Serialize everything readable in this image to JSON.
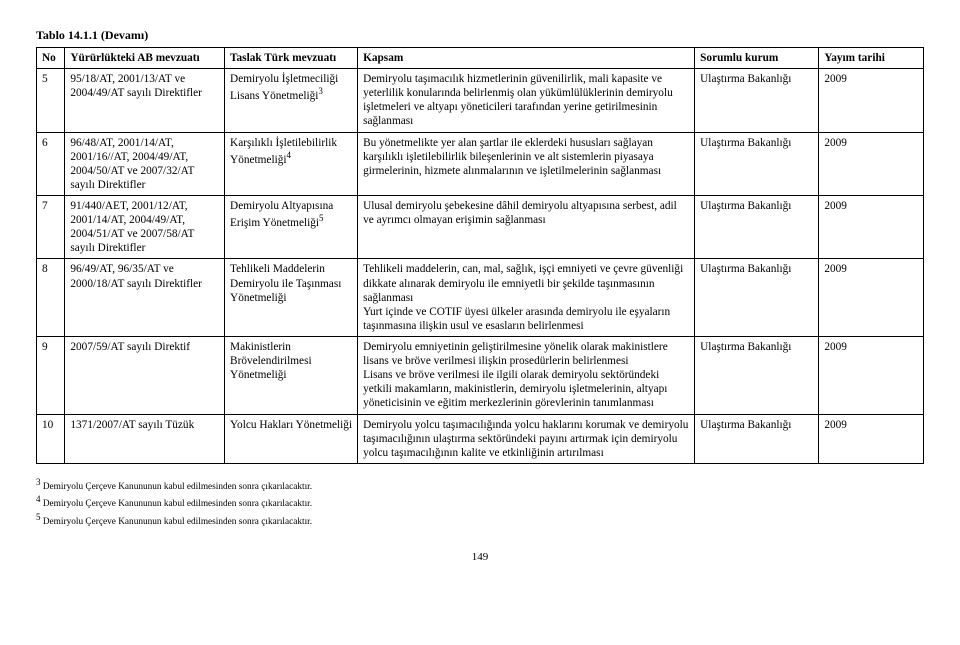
{
  "table_title": "Tablo 14.1.1 (Devamı)",
  "columns": [
    "No",
    "Yürürlükteki AB mevzuatı",
    "Taslak Türk mevzuatı",
    "Kapsam",
    "Sorumlu kurum",
    "Yayım tarihi"
  ],
  "rows": [
    {
      "no": "5",
      "eu": "95/18/AT, 2001/13/AT ve 2004/49/AT sayılı Direktifler",
      "tr_pre": "Demiryolu İşletmeciliği Lisans Yönetmeliği",
      "tr_sup": "3",
      "kapsam": "Demiryolu taşımacılık hizmetlerinin güvenilirlik, mali kapasite ve yeterlilik konularında belirlenmiş olan yükümlülüklerinin demiryolu işletmeleri ve altyapı yöneticileri tarafından yerine getirilmesinin sağlanması",
      "kurum": "Ulaştırma Bakanlığı",
      "tarih": "2009"
    },
    {
      "no": "6",
      "eu": "96/48/AT, 2001/14/AT, 2001/16//AT, 2004/49/AT, 2004/50/AT ve 2007/32/AT sayılı Direktifler",
      "tr_pre": "Karşılıklı İşletilebilirlik Yönetmeliği",
      "tr_sup": "4",
      "kapsam": "Bu yönetmelikte yer alan şartlar ile eklerdeki hususları sağlayan karşılıklı işletilebilirlik bileşenlerinin ve alt sistemlerin piyasaya girmelerinin, hizmete alınmalarının ve işletilmelerinin sağlanması",
      "kurum": "Ulaştırma Bakanlığı",
      "tarih": "2009"
    },
    {
      "no": "7",
      "eu": "91/440/AET, 2001/12/AT, 2001/14/AT, 2004/49/AT, 2004/51/AT ve 2007/58/AT sayılı Direktifler",
      "tr_pre": "Demiryolu Altyapısına Erişim Yönetmeliği",
      "tr_sup": "5",
      "kapsam": "Ulusal demiryolu şebekesine dâhil demiryolu altyapısına serbest, adil ve ayrımcı olmayan erişimin sağlanması",
      "kurum": "Ulaştırma Bakanlığı",
      "tarih": "2009"
    },
    {
      "no": "8",
      "eu": "96/49/AT, 96/35/AT ve 2000/18/AT sayılı Direktifler",
      "tr_pre": "Tehlikeli Maddelerin Demiryolu ile Taşınması Yönetmeliği",
      "tr_sup": "",
      "kapsam": "Tehlikeli maddelerin, can, mal, sağlık, işçi emniyeti ve çevre güvenliği dikkate alınarak demiryolu ile emniyetli bir şekilde taşınmasının sağlanması\nYurt içinde ve COTIF üyesi ülkeler arasında demiryolu ile eşyaların taşınmasına ilişkin usul ve esasların belirlenmesi",
      "kurum": "Ulaştırma Bakanlığı",
      "tarih": "2009"
    },
    {
      "no": "9",
      "eu": "2007/59/AT sayılı Direktif",
      "tr_pre": "Makinistlerin Brövelendirilmesi Yönetmeliği",
      "tr_sup": "",
      "kapsam": "Demiryolu emniyetinin geliştirilmesine yönelik olarak makinistlere lisans ve bröve verilmesi ilişkin prosedürlerin belirlenmesi\nLisans ve bröve verilmesi ile ilgili olarak demiryolu sektöründeki yetkili makamların, makinistlerin, demiryolu işletmelerinin, altyapı yöneticisinin ve eğitim merkezlerinin görevlerinin tanımlanması",
      "kurum": "Ulaştırma Bakanlığı",
      "tarih": "2009"
    },
    {
      "no": "10",
      "eu": "1371/2007/AT sayılı Tüzük",
      "tr_pre": "Yolcu Hakları Yönetmeliği",
      "tr_sup": "",
      "kapsam": "Demiryolu yolcu taşımacılığında yolcu haklarını korumak ve demiryolu taşımacılığının ulaştırma sektöründeki payını artırmak için demiryolu yolcu taşımacılığının kalite ve etkinliğinin artırılması",
      "kurum": "Ulaştırma Bakanlığı",
      "tarih": "2009"
    }
  ],
  "footnotes": [
    "Demiryolu Çerçeve Kanununun kabul edilmesinden sonra çıkarılacaktır.",
    "Demiryolu Çerçeve Kanununun kabul edilmesinden sonra çıkarılacaktır.",
    "Demiryolu Çerçeve Kanununun kabul edilmesinden sonra çıkarılacaktır."
  ],
  "footnote_start": 3,
  "page_number": "149"
}
